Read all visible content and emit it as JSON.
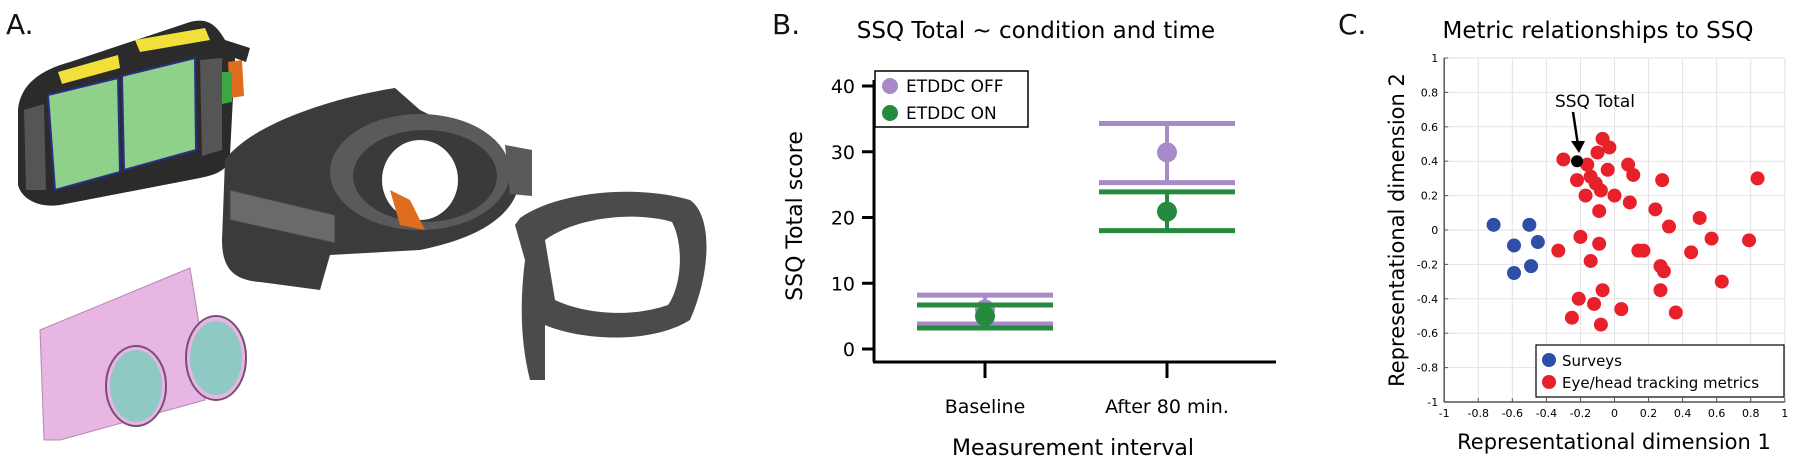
{
  "panels": {
    "a": {
      "label": "A.",
      "components": [
        "display-and-electronics-housing",
        "lens-cones",
        "facial-interface-shroud",
        "face-cushion"
      ],
      "colors": {
        "housing": "#2b2b2b",
        "pcb_yellow": "#f1e03a",
        "battery_green": "#8fd08a",
        "board_blue": "#2a2f86",
        "flex_orange": "#e06c1e",
        "lens_pink": "#e7b6e3",
        "lens_glass": "#8ec9c4",
        "fabric": "#3b3b3e",
        "cushion": "#4b4b4d"
      }
    },
    "b": {
      "label": "B."
    },
    "c": {
      "label": "C."
    }
  },
  "chart_data": [
    {
      "type": "scatter",
      "subtype": "point-errorbar",
      "title": "SSQ Total ~ condition and time",
      "xlabel": "Measurement interval",
      "ylabel": "SSQ Total score",
      "categories": [
        "Baseline",
        "After 80 min."
      ],
      "yticks": [
        0,
        10,
        20,
        30,
        40
      ],
      "ylim": [
        0,
        40
      ],
      "grid": false,
      "legend_position": "top-left",
      "series": [
        {
          "name": "ETDDC OFF",
          "color": "#a68bc8",
          "values": [
            6.0,
            29.9
          ],
          "lower": [
            3.8,
            25.3
          ],
          "upper": [
            8.2,
            34.3
          ]
        },
        {
          "name": "ETDDC ON",
          "color": "#268a3e",
          "values": [
            5.0,
            20.9
          ],
          "lower": [
            3.2,
            18.0
          ],
          "upper": [
            6.7,
            23.9
          ]
        }
      ]
    },
    {
      "type": "scatter",
      "title": "Metric relationships to SSQ",
      "xlabel": "Representational dimension 1",
      "ylabel": "Representational dimension 2",
      "xlim": [
        -1,
        1
      ],
      "ylim": [
        -1,
        1
      ],
      "xticks": [
        "-1",
        "-0.8",
        "-0.6",
        "-0.4",
        "-0.2",
        "0",
        "0.2",
        "0.4",
        "0.6",
        "0.8",
        "1"
      ],
      "yticks": [
        "-1",
        "-0.8",
        "-0.6",
        "-0.4",
        "-0.2",
        "0",
        "0.2",
        "0.4",
        "0.6",
        "0.8",
        "1"
      ],
      "grid": true,
      "legend_position": "bottom-right",
      "annotation": {
        "text": "SSQ Total",
        "x": -0.22,
        "y": 0.4
      },
      "series": [
        {
          "name": "Surveys",
          "color": "#2f4fa6",
          "points": [
            [
              -0.71,
              0.03
            ],
            [
              -0.5,
              0.03
            ],
            [
              -0.59,
              -0.09
            ],
            [
              -0.45,
              -0.07
            ],
            [
              -0.59,
              -0.25
            ],
            [
              -0.49,
              -0.21
            ]
          ]
        },
        {
          "name": "Eye/head tracking metrics",
          "color": "#e8202a",
          "points": [
            [
              -0.3,
              0.41
            ],
            [
              -0.07,
              0.53
            ],
            [
              -0.03,
              0.48
            ],
            [
              -0.1,
              0.45
            ],
            [
              -0.16,
              0.38
            ],
            [
              0.08,
              0.38
            ],
            [
              -0.04,
              0.35
            ],
            [
              0.11,
              0.32
            ],
            [
              0.28,
              0.29
            ],
            [
              0.84,
              0.3
            ],
            [
              -0.22,
              0.29
            ],
            [
              -0.14,
              0.31
            ],
            [
              -0.11,
              0.27
            ],
            [
              -0.08,
              0.23
            ],
            [
              -0.17,
              0.2
            ],
            [
              0.0,
              0.2
            ],
            [
              0.09,
              0.16
            ],
            [
              -0.09,
              0.11
            ],
            [
              0.24,
              0.12
            ],
            [
              0.5,
              0.07
            ],
            [
              0.32,
              0.02
            ],
            [
              -0.2,
              -0.04
            ],
            [
              -0.09,
              -0.08
            ],
            [
              -0.33,
              -0.12
            ],
            [
              0.57,
              -0.05
            ],
            [
              0.79,
              -0.06
            ],
            [
              0.14,
              -0.12
            ],
            [
              0.17,
              -0.12
            ],
            [
              0.45,
              -0.13
            ],
            [
              -0.14,
              -0.18
            ],
            [
              0.27,
              -0.21
            ],
            [
              0.29,
              -0.24
            ],
            [
              0.63,
              -0.3
            ],
            [
              -0.07,
              -0.35
            ],
            [
              0.27,
              -0.35
            ],
            [
              -0.21,
              -0.4
            ],
            [
              -0.12,
              -0.43
            ],
            [
              0.04,
              -0.46
            ],
            [
              0.36,
              -0.48
            ],
            [
              -0.25,
              -0.51
            ],
            [
              -0.08,
              -0.55
            ]
          ]
        },
        {
          "name": "SSQ Total",
          "color": "#000000",
          "points": [
            [
              -0.22,
              0.4
            ]
          ]
        }
      ]
    }
  ]
}
